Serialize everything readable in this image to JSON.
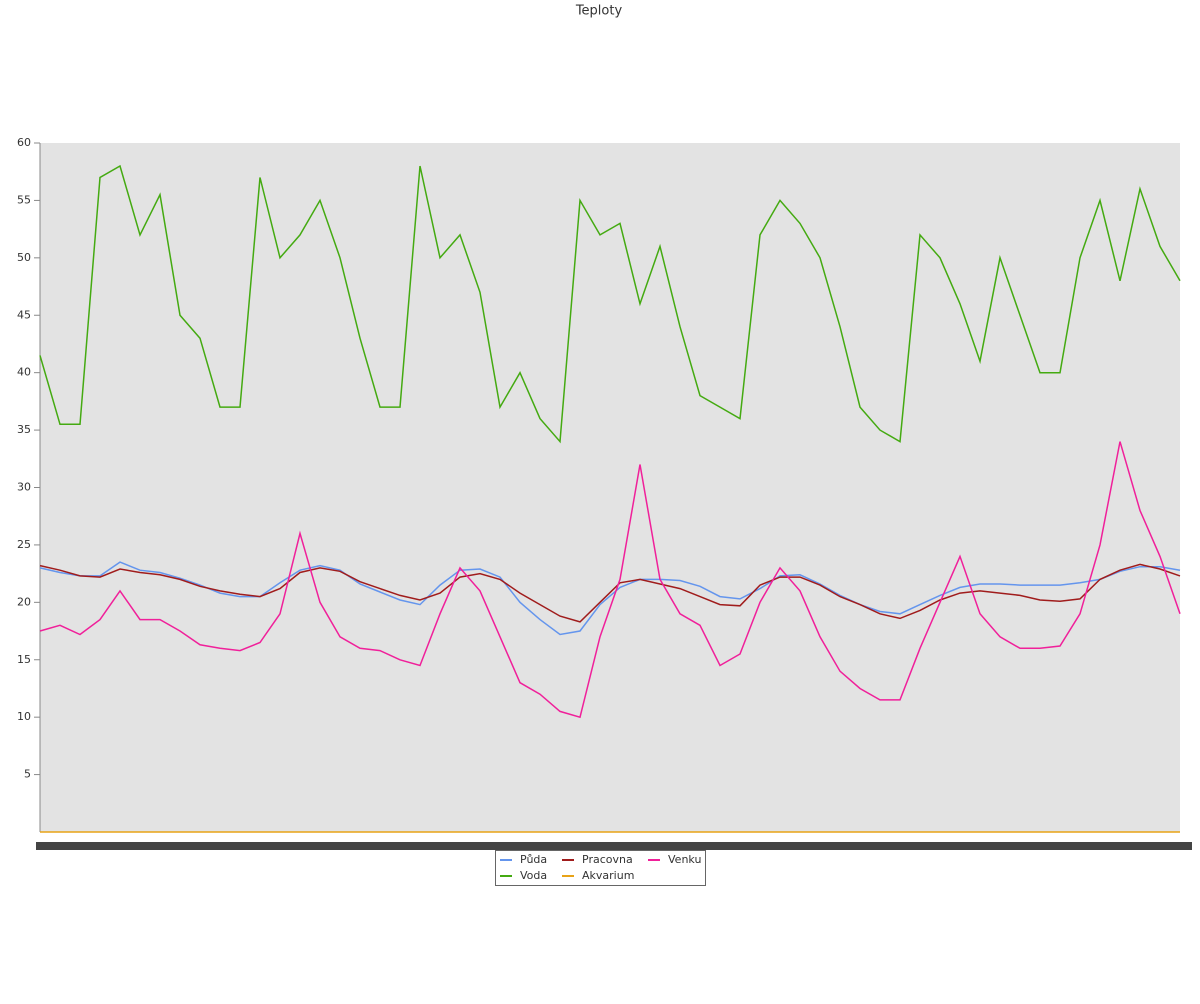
{
  "chart_data": {
    "type": "line",
    "title": "Teploty",
    "ylim": [
      0,
      60
    ],
    "yticks": [
      5,
      10,
      15,
      20,
      25,
      30,
      35,
      40,
      45,
      50,
      55,
      60
    ],
    "series": [
      {
        "name": "Půda",
        "color": "#6495ed",
        "values": [
          23,
          22.6,
          22.3,
          22.3,
          23.5,
          22.8,
          22.6,
          22.1,
          21.5,
          20.8,
          20.5,
          20.5,
          21.7,
          22.8,
          23.2,
          22.8,
          21.6,
          20.9,
          20.2,
          19.8,
          21.5,
          22.8,
          22.9,
          22.2,
          20,
          18.5,
          17.2,
          17.5,
          19.8,
          21.3,
          22,
          22,
          21.9,
          21.4,
          20.5,
          20.3,
          21.2,
          22.3,
          22.4,
          21.6,
          20.6,
          19.8,
          19.2,
          19,
          19.8,
          20.6,
          21.3,
          21.6,
          21.6,
          21.5,
          21.5,
          21.5,
          21.7,
          22,
          22.7,
          23.1,
          23.1,
          22.8
        ]
      },
      {
        "name": "Voda",
        "color": "#44aa11",
        "values": [
          41.5,
          35.5,
          35.5,
          57,
          58,
          52,
          55.5,
          45,
          43,
          37,
          37,
          57,
          50,
          52,
          55,
          50,
          43,
          37,
          37,
          58,
          50,
          52,
          47,
          37,
          40,
          36,
          34,
          55,
          52,
          53,
          46,
          51,
          44,
          38,
          37,
          36,
          52,
          55,
          53,
          50,
          44,
          37,
          35,
          34,
          52,
          50,
          46,
          41,
          50,
          45,
          40,
          40,
          50,
          55,
          48,
          56,
          51,
          48
        ]
      },
      {
        "name": "Pracovna",
        "color": "#a01c1c",
        "values": [
          23.2,
          22.8,
          22.3,
          22.2,
          22.9,
          22.6,
          22.4,
          22,
          21.4,
          21,
          20.7,
          20.5,
          21.2,
          22.6,
          23,
          22.7,
          21.8,
          21.2,
          20.6,
          20.2,
          20.8,
          22.2,
          22.5,
          22,
          20.8,
          19.8,
          18.8,
          18.3,
          20,
          21.7,
          22,
          21.6,
          21.2,
          20.5,
          19.8,
          19.7,
          21.5,
          22.2,
          22.2,
          21.5,
          20.5,
          19.8,
          19,
          18.6,
          19.3,
          20.2,
          20.8,
          21,
          20.8,
          20.6,
          20.2,
          20.1,
          20.3,
          22,
          22.8,
          23.3,
          22.9,
          22.3
        ]
      },
      {
        "name": "Akvarium",
        "color": "#e8a317",
        "values": [
          0,
          0,
          0,
          0,
          0,
          0,
          0,
          0,
          0,
          0,
          0,
          0,
          0,
          0,
          0,
          0,
          0,
          0,
          0,
          0,
          0,
          0,
          0,
          0,
          0,
          0,
          0,
          0,
          0,
          0,
          0,
          0,
          0,
          0,
          0,
          0,
          0,
          0,
          0,
          0,
          0,
          0,
          0,
          0,
          0,
          0,
          0,
          0,
          0,
          0,
          0,
          0,
          0,
          0,
          0,
          0,
          0,
          0
        ]
      },
      {
        "name": "Venku",
        "color": "#f0209a",
        "values": [
          17.5,
          18,
          17.2,
          18.5,
          21,
          18.5,
          18.5,
          17.5,
          16.3,
          16,
          15.8,
          16.5,
          19,
          26,
          20,
          17,
          16,
          15.8,
          15,
          14.5,
          19,
          23,
          21,
          17,
          13,
          12,
          10.5,
          10,
          17,
          22,
          32,
          22,
          19,
          18,
          14.5,
          15.5,
          20,
          23,
          21,
          17,
          14,
          12.5,
          11.5,
          11.5,
          16,
          20,
          24,
          19,
          17,
          16,
          16,
          16.2,
          19,
          25,
          34,
          28,
          24,
          19
        ]
      }
    ]
  }
}
